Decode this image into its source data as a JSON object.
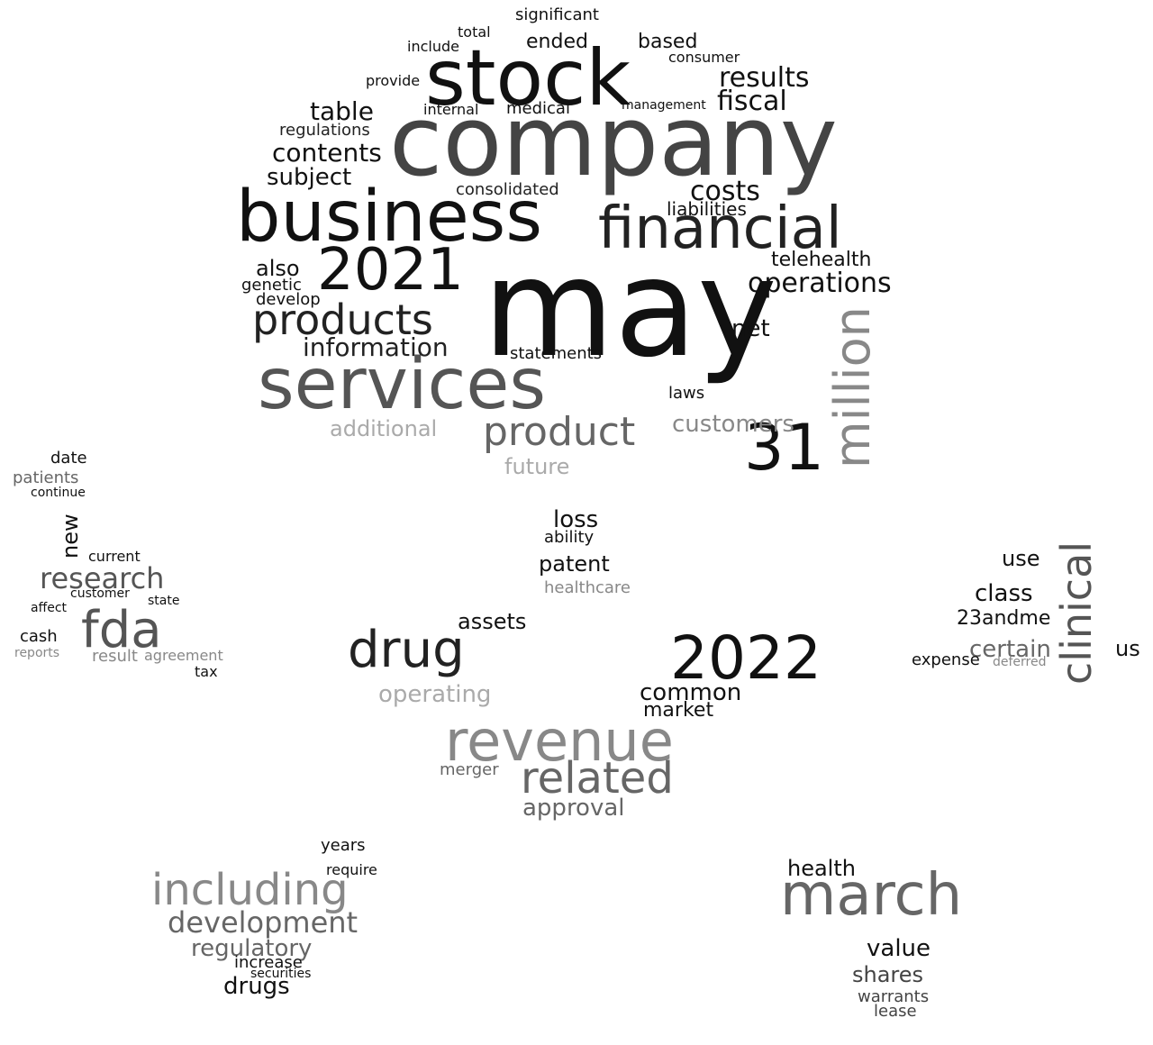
{
  "words": [
    "may",
    "company",
    "stock",
    "business",
    "services",
    "financial",
    "2021",
    "products",
    "revenue",
    "2022",
    "march",
    "31",
    "million",
    "fda",
    "drug",
    "related",
    "including",
    "product",
    "clinical",
    "information",
    "operations",
    "development",
    "research",
    "results",
    "fiscal",
    "table",
    "costs",
    "contents",
    "regulations",
    "subject",
    "consolidated",
    "liabilities",
    "telehealth",
    "also",
    "genetic",
    "develop",
    "customers",
    "additional",
    "future",
    "loss",
    "ability",
    "patent",
    "healthcare",
    "assets",
    "common",
    "market",
    "operating",
    "statements",
    "laws",
    "net",
    "approval",
    "merger",
    "health",
    "value",
    "shares",
    "warrants",
    "lease",
    "regulatory",
    "drugs",
    "increase",
    "securities",
    "years",
    "require",
    "certain",
    "class",
    "use",
    "23andme",
    "us",
    "expense",
    "deferred",
    "patients",
    "new",
    "continue",
    "date",
    "current",
    "customer",
    "state",
    "affect",
    "cash",
    "reports",
    "result",
    "agreement",
    "tax",
    "significant",
    "ended",
    "based",
    "consumer",
    "include",
    "internal",
    "medical",
    "management",
    "provide",
    "total",
    "significant"
  ]
}
